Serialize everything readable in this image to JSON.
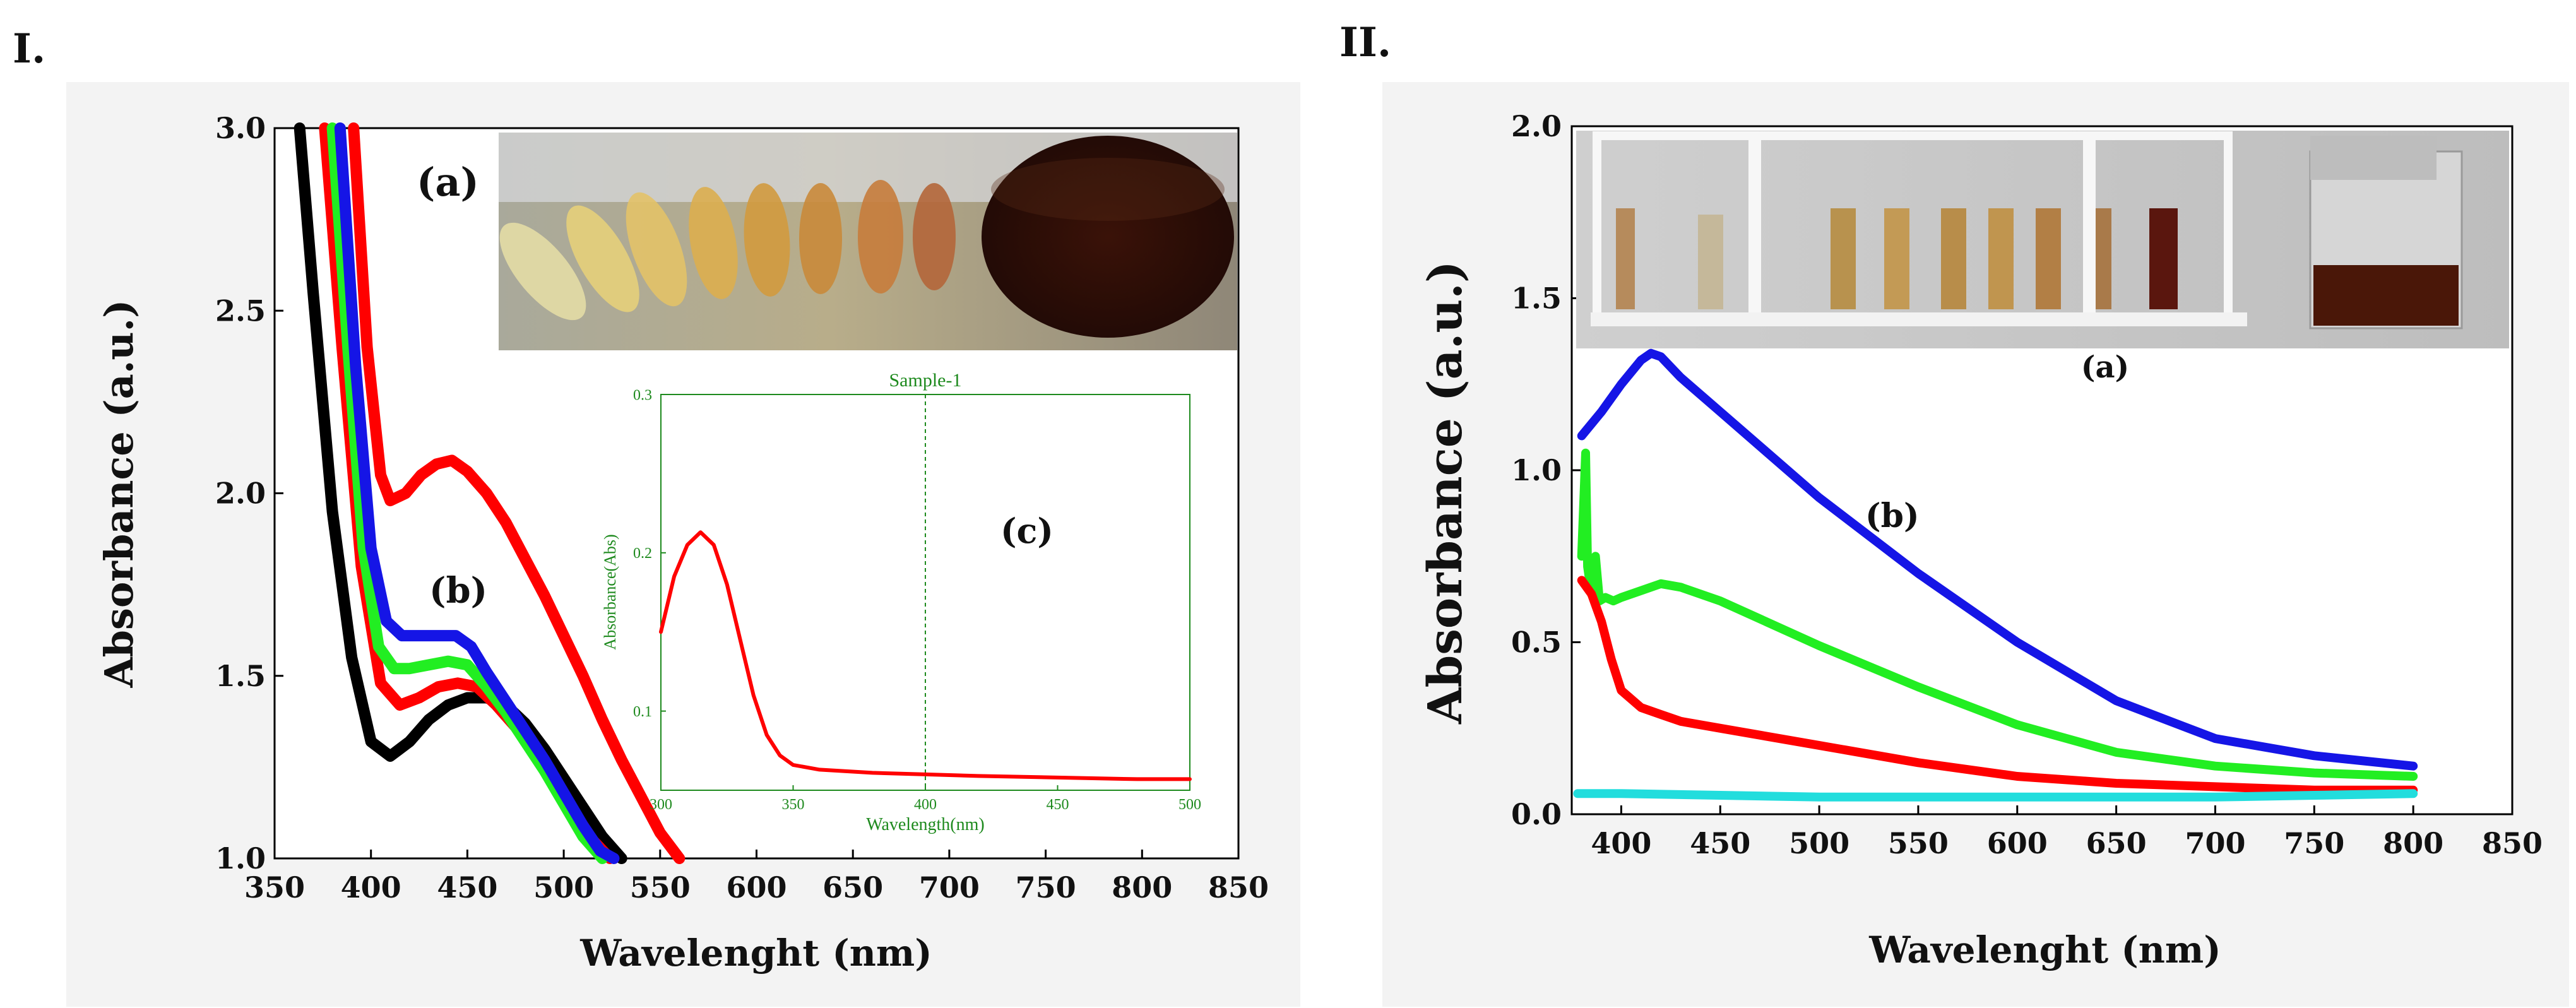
{
  "panels": {
    "left_label": "I.",
    "right_label": "II."
  },
  "colors": {
    "black": "#000000",
    "red": "#ff0000",
    "green": "#22ee22",
    "blue": "#1515e6",
    "cyan": "#22dddd",
    "inset_axis": "#1e8a1e"
  },
  "photos": {
    "left_description_key": "tubes-and-flask-photo",
    "right_description_key": "tube-rack-and-beaker-photo"
  },
  "chart_data": [
    {
      "type": "line",
      "panel": "I.",
      "xlabel": "Wavelenght (nm)",
      "ylabel": "Absorbance (a.u.)",
      "xlim": [
        350,
        850
      ],
      "ylim": [
        1.0,
        3.0
      ],
      "xticks": [
        "350",
        "400",
        "450",
        "500",
        "550",
        "600",
        "650",
        "700",
        "750",
        "800",
        "850"
      ],
      "yticks": [
        "1.0",
        "1.5",
        "2.0",
        "2.5",
        "3.0"
      ],
      "annotations": [
        "(a)",
        "(b)"
      ],
      "series": [
        {
          "color": "black",
          "x": [
            363,
            370,
            380,
            390,
            400,
            410,
            420,
            430,
            440,
            450,
            460,
            470,
            480,
            490,
            500,
            510,
            520,
            530
          ],
          "y": [
            3.0,
            2.55,
            1.95,
            1.55,
            1.32,
            1.28,
            1.32,
            1.38,
            1.42,
            1.44,
            1.44,
            1.42,
            1.37,
            1.3,
            1.22,
            1.14,
            1.06,
            1.0
          ]
        },
        {
          "color": "red",
          "x": [
            376,
            385,
            395,
            405,
            415,
            425,
            435,
            445,
            455,
            465,
            475,
            485,
            495,
            505,
            515,
            524
          ],
          "y": [
            3.0,
            2.4,
            1.8,
            1.48,
            1.42,
            1.44,
            1.47,
            1.48,
            1.47,
            1.42,
            1.36,
            1.29,
            1.21,
            1.13,
            1.05,
            1.0
          ]
        },
        {
          "color": "green",
          "x": [
            380,
            388,
            396,
            404,
            412,
            420,
            430,
            440,
            450,
            460,
            470,
            480,
            490,
            500,
            510,
            520
          ],
          "y": [
            3.0,
            2.4,
            1.85,
            1.58,
            1.52,
            1.52,
            1.53,
            1.54,
            1.53,
            1.47,
            1.4,
            1.32,
            1.24,
            1.15,
            1.06,
            1.0
          ]
        },
        {
          "color": "blue",
          "x": [
            384,
            392,
            400,
            408,
            416,
            424,
            434,
            444,
            452,
            460,
            470,
            480,
            490,
            500,
            510,
            519,
            526
          ],
          "y": [
            3.0,
            2.35,
            1.85,
            1.65,
            1.61,
            1.61,
            1.61,
            1.61,
            1.58,
            1.51,
            1.43,
            1.35,
            1.27,
            1.18,
            1.09,
            1.02,
            1.0
          ]
        },
        {
          "color": "red",
          "x": [
            391,
            398,
            405,
            410,
            418,
            426,
            434,
            442,
            450,
            460,
            470,
            480,
            490,
            500,
            510,
            520,
            530,
            540,
            550,
            560
          ],
          "y": [
            3.0,
            2.4,
            2.05,
            1.98,
            2.0,
            2.05,
            2.08,
            2.09,
            2.06,
            2.0,
            1.92,
            1.82,
            1.72,
            1.61,
            1.5,
            1.38,
            1.27,
            1.17,
            1.07,
            1.0
          ]
        }
      ],
      "inset": {
        "title": "Sample-1",
        "xlabel": "Wavelength(nm)",
        "ylabel": "Absorbance(Abs)",
        "xlim": [
          300,
          500
        ],
        "ylim": [
          0.05,
          0.3
        ],
        "xticks": [
          "300",
          "350",
          "400",
          "450",
          "500"
        ],
        "yticks": [
          "0.1",
          "0.2",
          "0.3"
        ],
        "annotation": "(c)",
        "series": [
          {
            "color": "red",
            "x": [
              300,
              305,
              310,
              315,
              320,
              325,
              330,
              335,
              340,
              345,
              350,
              360,
              380,
              400,
              420,
              450,
              480,
              500
            ],
            "y": [
              0.15,
              0.185,
              0.205,
              0.213,
              0.205,
              0.18,
              0.145,
              0.11,
              0.085,
              0.072,
              0.066,
              0.063,
              0.061,
              0.06,
              0.059,
              0.058,
              0.057,
              0.057
            ]
          }
        ],
        "marker_x": 400
      }
    },
    {
      "type": "line",
      "panel": "II.",
      "xlabel": "Wavelenght (nm)",
      "ylabel": "Absorbance (a.u.)",
      "xlim": [
        375,
        850
      ],
      "ylim": [
        0.0,
        2.0
      ],
      "xticks": [
        "400",
        "450",
        "500",
        "550",
        "600",
        "650",
        "700",
        "750",
        "800",
        "850"
      ],
      "yticks": [
        "0.0",
        "0.5",
        "1.0",
        "1.5",
        "2.0"
      ],
      "annotations": [
        "(a)",
        "(b)"
      ],
      "series": [
        {
          "color": "blue",
          "x": [
            380,
            390,
            400,
            410,
            415,
            420,
            430,
            450,
            500,
            550,
            600,
            650,
            700,
            750,
            800
          ],
          "y": [
            1.1,
            1.17,
            1.25,
            1.32,
            1.34,
            1.33,
            1.27,
            1.17,
            0.92,
            0.7,
            0.5,
            0.33,
            0.22,
            0.17,
            0.14
          ]
        },
        {
          "color": "green",
          "x": [
            380,
            382,
            383,
            385,
            387,
            389,
            392,
            396,
            400,
            410,
            420,
            430,
            450,
            500,
            550,
            600,
            650,
            700,
            750,
            800
          ],
          "y": [
            0.75,
            1.05,
            0.72,
            0.64,
            0.75,
            0.62,
            0.63,
            0.62,
            0.63,
            0.65,
            0.67,
            0.66,
            0.62,
            0.49,
            0.37,
            0.26,
            0.18,
            0.14,
            0.12,
            0.11
          ]
        },
        {
          "color": "red",
          "x": [
            380,
            385,
            390,
            395,
            400,
            410,
            420,
            430,
            450,
            500,
            550,
            600,
            650,
            700,
            750,
            800
          ],
          "y": [
            0.68,
            0.64,
            0.56,
            0.45,
            0.36,
            0.31,
            0.29,
            0.27,
            0.25,
            0.2,
            0.15,
            0.11,
            0.09,
            0.08,
            0.07,
            0.07
          ]
        },
        {
          "color": "cyan",
          "x": [
            378,
            400,
            450,
            500,
            550,
            600,
            650,
            700,
            750,
            800
          ],
          "y": [
            0.06,
            0.06,
            0.055,
            0.05,
            0.05,
            0.05,
            0.05,
            0.05,
            0.055,
            0.06
          ]
        }
      ]
    }
  ]
}
